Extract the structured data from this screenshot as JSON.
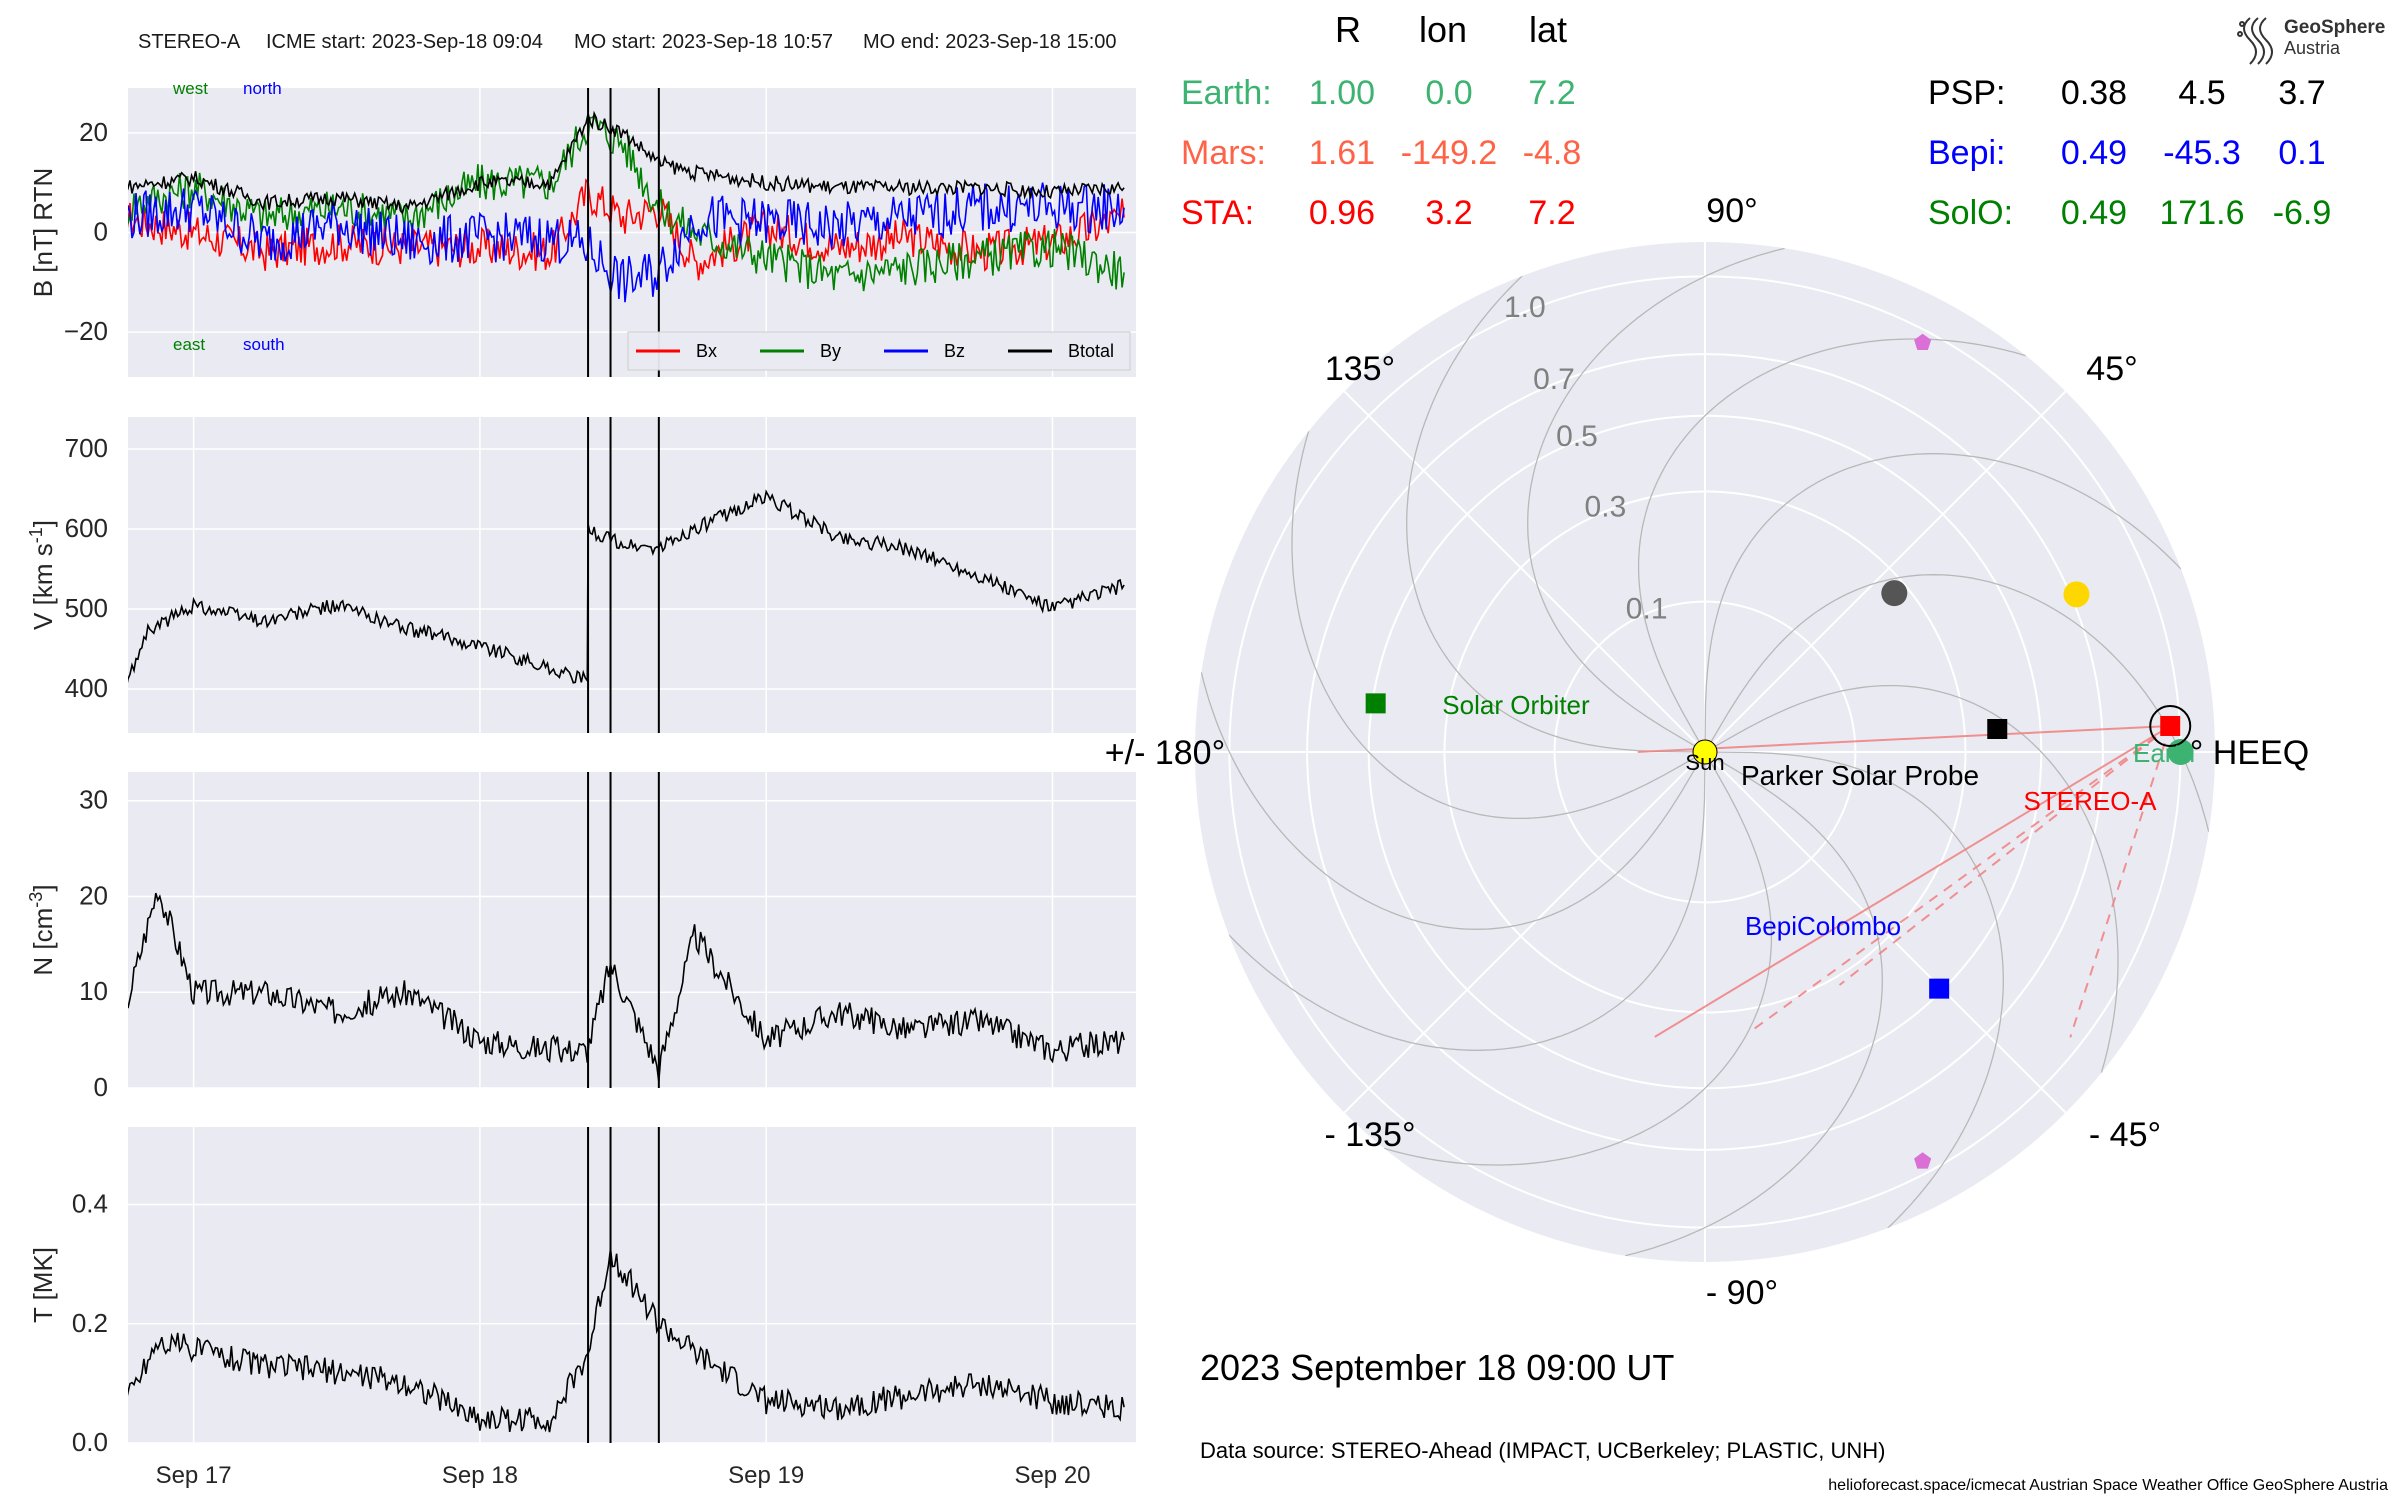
{
  "header": {
    "spacecraft": "STEREO-A",
    "icme_start": "ICME start: 2023-Sep-18 09:04",
    "mo_start": "MO start: 2023-Sep-18 10:57",
    "mo_end": "MO end: 2023-Sep-18 15:00"
  },
  "colors": {
    "bx": "#ff0000",
    "by": "#008000",
    "bz": "#0000ff",
    "btotal": "#000000",
    "panel_bg": "#eaeaf2"
  },
  "labels": {
    "west": "west",
    "north": "north",
    "east": "east",
    "south": "south",
    "legend_bx": "Bx",
    "legend_by": "By",
    "legend_bz": "Bz",
    "legend_btotal": "Btotal"
  },
  "chart_data": [
    {
      "type": "line",
      "ylabel": "B [nT] RTN",
      "ylim": [
        -29,
        29
      ],
      "yticks": [
        "20",
        "0",
        "−20"
      ],
      "ytick_values": [
        20,
        0,
        -20
      ],
      "x": [
        "2023-09-16 18:00",
        "2023-09-17 00:00",
        "2023-09-17 06:00",
        "2023-09-17 12:00",
        "2023-09-17 18:00",
        "2023-09-18 00:00",
        "2023-09-18 06:00",
        "2023-09-18 09:04",
        "2023-09-18 12:00",
        "2023-09-18 15:00",
        "2023-09-18 18:00",
        "2023-09-19 00:00",
        "2023-09-19 06:00",
        "2023-09-19 12:00",
        "2023-09-19 18:00",
        "2023-09-20 00:00",
        "2023-09-20 06:00"
      ],
      "series": [
        {
          "name": "Bx",
          "values": [
            3,
            0,
            -4,
            -2,
            -3,
            -3,
            -4,
            8,
            3,
            5,
            -6,
            1,
            -3,
            -1,
            -4,
            -2,
            3
          ]
        },
        {
          "name": "By",
          "values": [
            5,
            9,
            3,
            5,
            3,
            10,
            10,
            22,
            18,
            5,
            0,
            -5,
            -9,
            -7,
            -5,
            -3,
            -8
          ]
        },
        {
          "name": "Bz",
          "values": [
            3,
            5,
            -2,
            2,
            -2,
            -1,
            -1,
            -3,
            -10,
            -8,
            3,
            2,
            1,
            3,
            5,
            5,
            5
          ]
        },
        {
          "name": "Btotal",
          "values": [
            9,
            11,
            6,
            7,
            5,
            10,
            10,
            23,
            20,
            14,
            12,
            10,
            9,
            9,
            9,
            8,
            9
          ]
        }
      ]
    },
    {
      "type": "line",
      "ylabel": "V [km s$^{-1}$]",
      "ylim": [
        345,
        740
      ],
      "yticks": [
        "700",
        "600",
        "500",
        "400"
      ],
      "ytick_values": [
        700,
        600,
        500,
        400
      ],
      "x": [
        "2023-09-16 18:00",
        "2023-09-16 20:00",
        "2023-09-17 00:00",
        "2023-09-17 06:00",
        "2023-09-17 12:00",
        "2023-09-17 18:00",
        "2023-09-18 00:00",
        "2023-09-18 06:00",
        "2023-09-18 09:00",
        "2023-09-18 09:04",
        "2023-09-18 12:00",
        "2023-09-18 15:00",
        "2023-09-18 18:00",
        "2023-09-19 00:00",
        "2023-09-19 06:00",
        "2023-09-19 12:00",
        "2023-09-19 18:00",
        "2023-09-20 00:00",
        "2023-09-20 06:00"
      ],
      "values": [
        390,
        470,
        505,
        485,
        505,
        475,
        455,
        425,
        410,
        600,
        580,
        575,
        600,
        640,
        590,
        575,
        540,
        500,
        530
      ]
    },
    {
      "type": "line",
      "ylabel": "N [cm$^{-3}$]",
      "ylim": [
        0,
        33
      ],
      "yticks": [
        "30",
        "20",
        "10",
        "0"
      ],
      "ytick_values": [
        30,
        20,
        10,
        0
      ],
      "x": [
        "2023-09-16 18:00",
        "2023-09-16 21:00",
        "2023-09-17 00:00",
        "2023-09-17 06:00",
        "2023-09-17 12:00",
        "2023-09-17 18:00",
        "2023-09-18 00:00",
        "2023-09-18 06:00",
        "2023-09-18 09:00",
        "2023-09-18 10:57",
        "2023-09-18 15:00",
        "2023-09-18 18:00",
        "2023-09-19 00:00",
        "2023-09-19 06:00",
        "2023-09-19 12:00",
        "2023-09-19 18:00",
        "2023-09-20 00:00",
        "2023-09-20 06:00"
      ],
      "values": [
        7,
        21,
        10,
        10,
        8,
        10,
        5,
        4,
        4,
        13,
        2,
        16,
        5,
        8,
        6,
        7,
        4,
        5
      ]
    },
    {
      "type": "line",
      "ylabel": "T [MK]",
      "ylim": [
        0,
        0.53
      ],
      "yticks": [
        "0.4",
        "0.2",
        "0.0"
      ],
      "ytick_values": [
        0.4,
        0.2,
        0.0
      ],
      "xticks": [
        "Sep 17",
        "Sep 18",
        "Sep 19",
        "Sep 20"
      ],
      "xtick_values": [
        "2023-09-17 00:00",
        "2023-09-18 00:00",
        "2023-09-19 00:00",
        "2023-09-20 00:00"
      ],
      "x": [
        "2023-09-16 18:00",
        "2023-09-16 21:00",
        "2023-09-17 00:00",
        "2023-09-17 06:00",
        "2023-09-17 12:00",
        "2023-09-17 18:00",
        "2023-09-18 00:00",
        "2023-09-18 06:00",
        "2023-09-18 09:04",
        "2023-09-18 10:57",
        "2023-09-18 15:00",
        "2023-09-18 18:00",
        "2023-09-19 00:00",
        "2023-09-19 06:00",
        "2023-09-19 12:00",
        "2023-09-19 18:00",
        "2023-09-20 00:00",
        "2023-09-20 06:00"
      ],
      "values": [
        0.06,
        0.17,
        0.16,
        0.13,
        0.12,
        0.1,
        0.04,
        0.04,
        0.15,
        0.32,
        0.2,
        0.15,
        0.07,
        0.06,
        0.08,
        0.1,
        0.07,
        0.06
      ]
    },
    {
      "type": "scatter",
      "subtype": "polar",
      "radial_ticks": [
        "0.1",
        "0.3",
        "0.5",
        "0.7",
        "1.0"
      ],
      "radial_tick_values": [
        0.1,
        0.3,
        0.5,
        0.7,
        1.0
      ],
      "angle_labels": {
        "0": "0° HEEQ",
        "45": "45°",
        "90": "90°",
        "135": "135°",
        "180": "+/- 180°",
        "-135": "- 135°",
        "-90": "- 90°",
        "-45": "- 45°"
      },
      "bodies": [
        {
          "label": "Sun",
          "r": 0,
          "lon": 0,
          "color": "#ffff00",
          "marker": "circle"
        },
        {
          "label": "Earth",
          "r": 1.0,
          "lon": 0.0,
          "color": "#3cb371",
          "marker": "circle"
        },
        {
          "label": "STEREO-A",
          "r": 0.96,
          "lon": 3.2,
          "color": "#ff0000",
          "marker": "square"
        },
        {
          "label": "Parker Solar Probe",
          "r": 0.38,
          "lon": 4.5,
          "color": "#000000",
          "marker": "square"
        },
        {
          "label": "BepiColombo",
          "r": 0.49,
          "lon": -45.3,
          "color": "#0000ff",
          "marker": "square"
        },
        {
          "label": "Solar Orbiter",
          "r": 0.49,
          "lon": 171.6,
          "color": "#008000",
          "marker": "square"
        },
        {
          "label": "",
          "r": 0.72,
          "lon": 23,
          "color": "#ffd700",
          "marker": "circle"
        },
        {
          "label": "",
          "r": 0.27,
          "lon": 40,
          "color": "#555555",
          "marker": "circle"
        },
        {
          "label": "",
          "r": 0.95,
          "lon": 62,
          "color": "#da70d6",
          "marker": "pentagon"
        },
        {
          "label": "",
          "r": 0.95,
          "lon": -62,
          "color": "#da70d6",
          "marker": "pentagon"
        }
      ]
    }
  ],
  "table": {
    "headers": [
      "R",
      "lon",
      "lat"
    ],
    "left_rows": [
      {
        "name": "Earth:",
        "r": "1.00",
        "lon": "0.0",
        "lat": "7.2",
        "color": "#3cb371"
      },
      {
        "name": "Mars:",
        "r": "1.61",
        "lon": "-149.2",
        "lat": "-4.8",
        "color": "#ff6347"
      },
      {
        "name": "STA:",
        "r": "0.96",
        "lon": "3.2",
        "lat": "7.2",
        "color": "#ff0000"
      }
    ],
    "right_rows": [
      {
        "name": "PSP:",
        "r": "0.38",
        "lon": "4.5",
        "lat": "3.7",
        "color": "#000000"
      },
      {
        "name": "Bepi:",
        "r": "0.49",
        "lon": "-45.3",
        "lat": "0.1",
        "color": "#0000ff"
      },
      {
        "name": "SolO:",
        "r": "0.49",
        "lon": "171.6",
        "lat": "-6.9",
        "color": "#008000"
      }
    ]
  },
  "logo": {
    "line1": "GeoSphere",
    "line2": "Austria"
  },
  "date": "2023 September 18  09:00 UT",
  "data_source": "Data source: STEREO-Ahead (IMPACT, UCBerkeley; PLASTIC, UNH)",
  "footer": "helioforecast.space/icmecat   Austrian Space Weather Office   GeoSphere Austria"
}
